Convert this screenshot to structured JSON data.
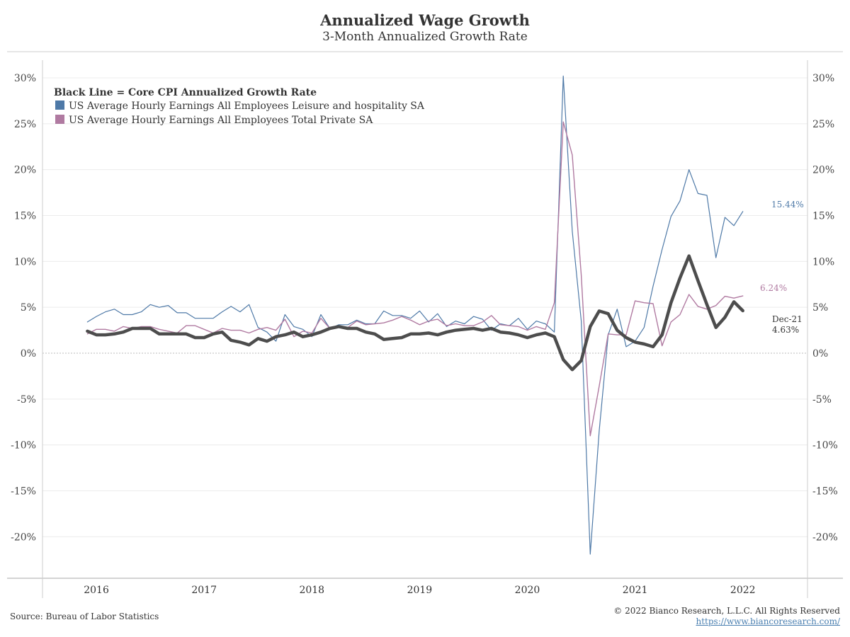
{
  "title": "Annualized Wage Growth",
  "subtitle": "3-Month Annualized Growth Rate",
  "source": "Source: Bureau of Labor Statistics",
  "copyright": "© 2022 Bianco Research, L.L.C. All Rights Reserved",
  "url": "https://www.biancoresearch.com/",
  "chart_data": {
    "type": "line",
    "legend_header": "Black Line = Core CPI Annualized Growth Rate",
    "legend_position": "top-left",
    "grid": true,
    "y_ticks": [
      "30%",
      "25%",
      "20%",
      "15%",
      "10%",
      "5%",
      "0%",
      "-5%",
      "-10%",
      "-15%",
      "-20%"
    ],
    "y_tick_values": [
      30,
      25,
      20,
      15,
      10,
      5,
      0,
      -5,
      -10,
      -15,
      -20
    ],
    "ylim": [
      -25,
      33
    ],
    "x_ticks": [
      "2016",
      "2017",
      "2018",
      "2019",
      "2020",
      "2021",
      "2022"
    ],
    "x_tick_values": [
      2016.0,
      2017.0,
      2018.0,
      2019.0,
      2020.0,
      2021.0,
      2022.0
    ],
    "xlim": [
      2015.5,
      2022.6
    ],
    "x_start": 2015.917,
    "x_step": 0.08333,
    "series": [
      {
        "name": "US Average Hourly Earnings All Employees Leisure and hospitality SA",
        "color": "#4e79a7",
        "width": 1.2,
        "values": [
          3.4,
          4.0,
          4.5,
          4.8,
          4.2,
          4.2,
          4.5,
          5.3,
          5.0,
          5.2,
          4.4,
          4.4,
          3.8,
          3.8,
          3.8,
          4.5,
          5.1,
          4.5,
          5.3,
          2.8,
          2.3,
          1.3,
          4.2,
          2.9,
          2.6,
          1.8,
          4.2,
          2.7,
          3.1,
          3.1,
          3.6,
          3.2,
          3.2,
          4.6,
          4.1,
          4.1,
          3.8,
          4.6,
          3.4,
          4.3,
          2.9,
          3.5,
          3.2,
          4.0,
          3.7,
          2.5,
          3.2,
          3.0,
          3.8,
          2.6,
          3.5,
          3.2,
          2.3,
          30.2,
          13.3,
          3.5,
          -21.9,
          -8.5,
          2.0,
          4.8,
          0.7,
          1.3,
          2.8,
          7.3,
          11.3,
          14.9,
          16.6,
          20.0,
          17.4,
          17.2,
          10.4,
          14.8,
          13.9,
          15.44
        ]
      },
      {
        "name": "US Average Hourly Earnings All Employees Total Private SA",
        "color": "#b07aa1",
        "width": 1.4,
        "values": [
          2.1,
          2.6,
          2.6,
          2.4,
          2.9,
          2.7,
          2.9,
          2.9,
          2.6,
          2.4,
          2.2,
          3.0,
          3.0,
          2.6,
          2.2,
          2.7,
          2.5,
          2.5,
          2.2,
          2.6,
          2.8,
          2.5,
          3.7,
          1.8,
          2.4,
          2.2,
          3.8,
          2.7,
          2.8,
          2.8,
          3.5,
          3.1,
          3.2,
          3.3,
          3.6,
          4.0,
          3.6,
          3.1,
          3.5,
          3.7,
          3.0,
          3.2,
          3.0,
          3.0,
          3.4,
          4.1,
          3.1,
          3.0,
          2.9,
          2.5,
          2.9,
          2.6,
          5.5,
          25.2,
          21.6,
          8.5,
          -9.0,
          -3.6,
          2.1,
          2.0,
          2.0,
          5.7,
          5.5,
          5.4,
          0.8,
          3.4,
          4.2,
          6.4,
          5.1,
          4.8,
          5.2,
          6.2,
          6.0,
          6.24
        ]
      },
      {
        "name": "Core CPI Annualized Growth Rate",
        "color": "#4d4d4d",
        "width": 4.5,
        "values": [
          2.4,
          2.0,
          2.0,
          2.1,
          2.3,
          2.7,
          2.7,
          2.7,
          2.1,
          2.1,
          2.1,
          2.1,
          1.7,
          1.7,
          2.1,
          2.3,
          1.4,
          1.2,
          0.9,
          1.6,
          1.3,
          1.8,
          2.0,
          2.3,
          1.8,
          2.0,
          2.3,
          2.7,
          2.9,
          2.7,
          2.7,
          2.3,
          2.1,
          1.5,
          1.6,
          1.7,
          2.1,
          2.1,
          2.2,
          2.0,
          2.3,
          2.5,
          2.6,
          2.7,
          2.5,
          2.7,
          2.3,
          2.2,
          2.0,
          1.7,
          2.0,
          2.2,
          1.8,
          -0.7,
          -1.8,
          -0.8,
          2.9,
          4.6,
          4.3,
          2.5,
          1.7,
          1.2,
          1.0,
          0.7,
          2.0,
          5.5,
          8.2,
          10.6,
          7.9,
          5.3,
          2.8,
          3.9,
          5.6,
          4.63
        ]
      }
    ],
    "annotations": [
      {
        "text": "15.44%",
        "color": "#4e79a7"
      },
      {
        "text": "6.24%",
        "color": "#b07aa1"
      },
      {
        "text": "Dec-21",
        "color": "#333333"
      },
      {
        "text": "4.63%",
        "color": "#333333"
      }
    ]
  }
}
